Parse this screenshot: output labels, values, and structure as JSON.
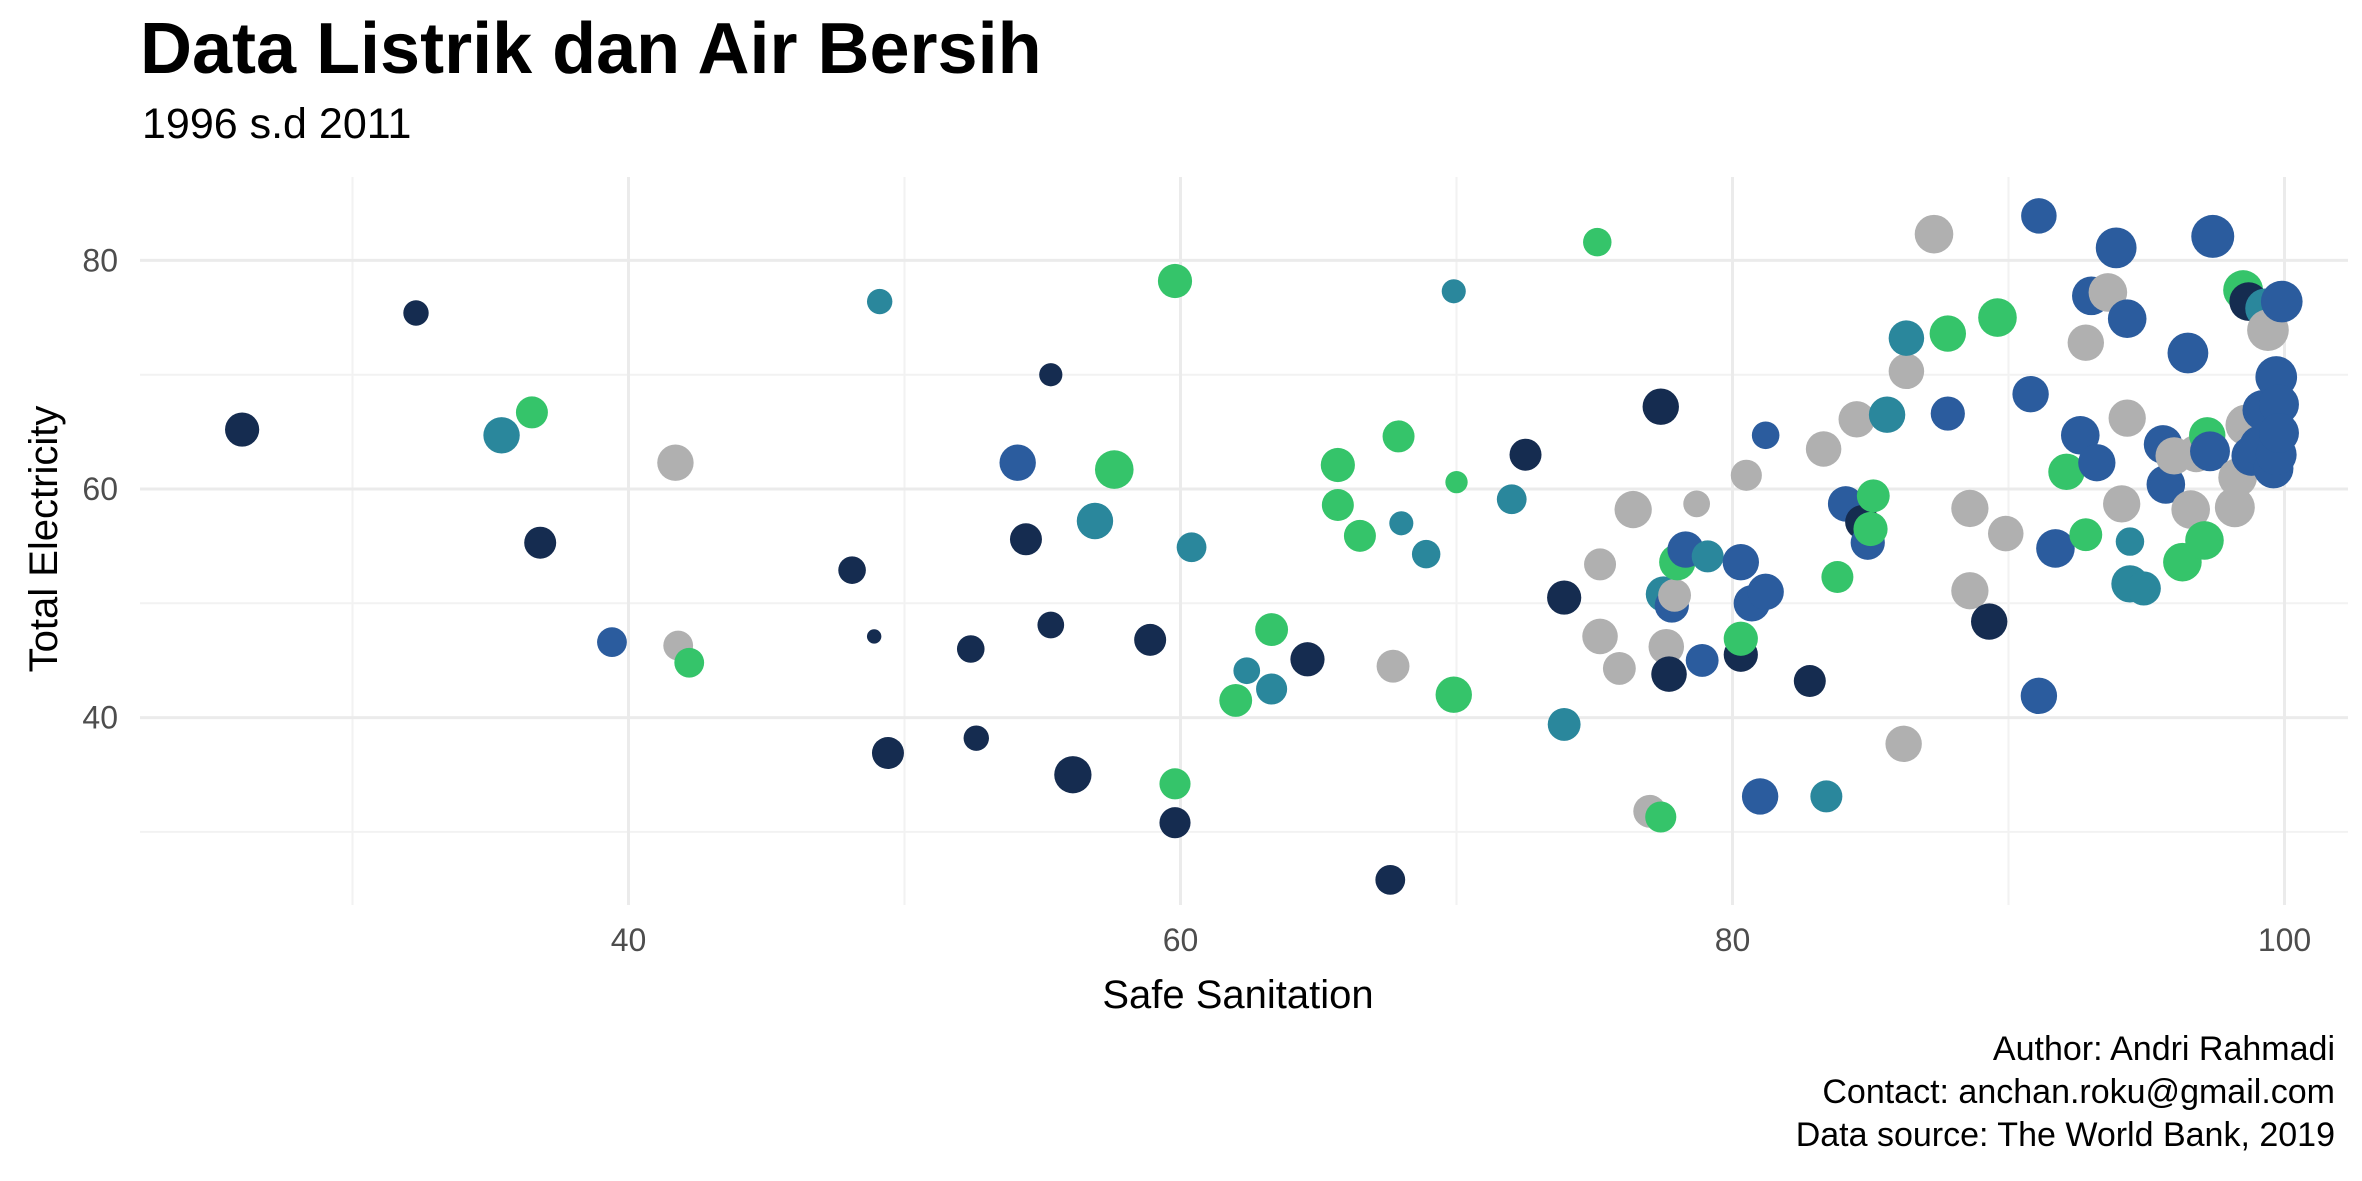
{
  "header": {
    "title": "Data Listrik dan Air Bersih",
    "subtitle": "1996 s.d 2011"
  },
  "caption": {
    "author": "Author: Andri Rahmadi",
    "contact": "Contact: anchan.roku@gmail.com",
    "source": "Data source: The World Bank, 2019"
  },
  "colors": {
    "navy": "#152c50",
    "blue": "#2b5c9e",
    "teal": "#2a879c",
    "green": "#35c46a",
    "gray": "#b0b0b0",
    "grid_major": "#ebebeb",
    "grid_minor": "#f2f2f2"
  },
  "chart_data": {
    "type": "scatter",
    "title": "Data Listrik dan Air Bersih",
    "subtitle": "1996 s.d 2011",
    "xlabel": "Safe Sanitation",
    "ylabel": "Total Electricity",
    "xlim": [
      22.3,
      102.3
    ],
    "ylim": [
      23.6,
      87.3
    ],
    "x_ticks": [
      40,
      60,
      80,
      100
    ],
    "y_ticks": [
      40,
      60,
      80
    ],
    "x_tick_labels": [
      "40",
      "60",
      "80",
      "100"
    ],
    "y_tick_labels": [
      "40",
      "60",
      "80"
    ],
    "grid": true,
    "legend": "none",
    "points": [
      {
        "x": 26.0,
        "y": 65.2,
        "s": 0.55,
        "c": "navy"
      },
      {
        "x": 32.3,
        "y": 75.4,
        "s": 0.35,
        "c": "navy"
      },
      {
        "x": 35.4,
        "y": 64.7,
        "s": 0.6,
        "c": "teal"
      },
      {
        "x": 36.5,
        "y": 66.7,
        "s": 0.5,
        "c": "green"
      },
      {
        "x": 36.8,
        "y": 55.3,
        "s": 0.5,
        "c": "navy"
      },
      {
        "x": 39.4,
        "y": 46.6,
        "s": 0.45,
        "c": "blue"
      },
      {
        "x": 41.7,
        "y": 62.3,
        "s": 0.6,
        "c": "gray"
      },
      {
        "x": 41.8,
        "y": 46.3,
        "s": 0.45,
        "c": "gray"
      },
      {
        "x": 42.2,
        "y": 44.8,
        "s": 0.45,
        "c": "green"
      },
      {
        "x": 48.1,
        "y": 52.9,
        "s": 0.4,
        "c": "navy"
      },
      {
        "x": 48.9,
        "y": 47.1,
        "s": 0.1,
        "c": "navy"
      },
      {
        "x": 49.1,
        "y": 76.4,
        "s": 0.35,
        "c": "teal"
      },
      {
        "x": 49.4,
        "y": 36.9,
        "s": 0.5,
        "c": "navy"
      },
      {
        "x": 52.4,
        "y": 46.0,
        "s": 0.4,
        "c": "navy"
      },
      {
        "x": 52.6,
        "y": 38.2,
        "s": 0.35,
        "c": "navy"
      },
      {
        "x": 54.1,
        "y": 62.3,
        "s": 0.6,
        "c": "blue"
      },
      {
        "x": 54.4,
        "y": 55.6,
        "s": 0.5,
        "c": "navy"
      },
      {
        "x": 55.3,
        "y": 48.1,
        "s": 0.38,
        "c": "navy"
      },
      {
        "x": 55.3,
        "y": 70.0,
        "s": 0.3,
        "c": "navy"
      },
      {
        "x": 56.1,
        "y": 35.0,
        "s": 0.62,
        "c": "navy"
      },
      {
        "x": 56.9,
        "y": 57.2,
        "s": 0.6,
        "c": "teal"
      },
      {
        "x": 57.6,
        "y": 61.7,
        "s": 0.65,
        "c": "green"
      },
      {
        "x": 58.9,
        "y": 46.8,
        "s": 0.5,
        "c": "navy"
      },
      {
        "x": 59.8,
        "y": 78.2,
        "s": 0.55,
        "c": "green"
      },
      {
        "x": 59.8,
        "y": 34.2,
        "s": 0.48,
        "c": "green"
      },
      {
        "x": 59.8,
        "y": 30.8,
        "s": 0.48,
        "c": "navy"
      },
      {
        "x": 60.4,
        "y": 54.9,
        "s": 0.45,
        "c": "teal"
      },
      {
        "x": 62.0,
        "y": 41.5,
        "s": 0.52,
        "c": "green"
      },
      {
        "x": 62.4,
        "y": 44.1,
        "s": 0.38,
        "c": "teal"
      },
      {
        "x": 63.3,
        "y": 42.5,
        "s": 0.48,
        "c": "teal"
      },
      {
        "x": 63.3,
        "y": 47.7,
        "s": 0.52,
        "c": "green"
      },
      {
        "x": 64.6,
        "y": 45.1,
        "s": 0.55,
        "c": "navy"
      },
      {
        "x": 65.7,
        "y": 62.1,
        "s": 0.55,
        "c": "green"
      },
      {
        "x": 65.7,
        "y": 58.6,
        "s": 0.5,
        "c": "green"
      },
      {
        "x": 66.5,
        "y": 55.9,
        "s": 0.5,
        "c": "green"
      },
      {
        "x": 67.6,
        "y": 25.8,
        "s": 0.45,
        "c": "navy"
      },
      {
        "x": 67.7,
        "y": 44.5,
        "s": 0.52,
        "c": "gray"
      },
      {
        "x": 67.9,
        "y": 64.6,
        "s": 0.5,
        "c": "green"
      },
      {
        "x": 68.0,
        "y": 57.0,
        "s": 0.32,
        "c": "teal"
      },
      {
        "x": 68.9,
        "y": 54.3,
        "s": 0.42,
        "c": "teal"
      },
      {
        "x": 69.9,
        "y": 77.3,
        "s": 0.32,
        "c": "teal"
      },
      {
        "x": 69.9,
        "y": 42.0,
        "s": 0.6,
        "c": "green"
      },
      {
        "x": 70.0,
        "y": 60.6,
        "s": 0.28,
        "c": "green"
      },
      {
        "x": 72.0,
        "y": 59.1,
        "s": 0.45,
        "c": "teal"
      },
      {
        "x": 72.5,
        "y": 63.0,
        "s": 0.5,
        "c": "navy"
      },
      {
        "x": 73.9,
        "y": 50.5,
        "s": 0.55,
        "c": "navy"
      },
      {
        "x": 73.9,
        "y": 39.4,
        "s": 0.52,
        "c": "teal"
      },
      {
        "x": 75.1,
        "y": 81.6,
        "s": 0.42,
        "c": "green"
      },
      {
        "x": 75.2,
        "y": 53.4,
        "s": 0.5,
        "c": "gray"
      },
      {
        "x": 75.2,
        "y": 47.1,
        "s": 0.58,
        "c": "gray"
      },
      {
        "x": 75.9,
        "y": 44.3,
        "s": 0.52,
        "c": "gray"
      },
      {
        "x": 76.4,
        "y": 58.2,
        "s": 0.62,
        "c": "gray"
      },
      {
        "x": 77.0,
        "y": 31.8,
        "s": 0.52,
        "c": "gray"
      },
      {
        "x": 77.4,
        "y": 31.3,
        "s": 0.48,
        "c": "green"
      },
      {
        "x": 77.4,
        "y": 67.2,
        "s": 0.6,
        "c": "navy"
      },
      {
        "x": 77.5,
        "y": 50.8,
        "s": 0.58,
        "c": "teal"
      },
      {
        "x": 77.6,
        "y": 46.2,
        "s": 0.58,
        "c": "gray"
      },
      {
        "x": 77.7,
        "y": 43.8,
        "s": 0.58,
        "c": "navy"
      },
      {
        "x": 77.8,
        "y": 49.8,
        "s": 0.55,
        "c": "blue"
      },
      {
        "x": 77.9,
        "y": 50.7,
        "s": 0.52,
        "c": "gray"
      },
      {
        "x": 78.0,
        "y": 53.6,
        "s": 0.6,
        "c": "green"
      },
      {
        "x": 78.3,
        "y": 54.7,
        "s": 0.6,
        "c": "blue"
      },
      {
        "x": 78.7,
        "y": 58.7,
        "s": 0.38,
        "c": "gray"
      },
      {
        "x": 78.9,
        "y": 45.0,
        "s": 0.52,
        "c": "blue"
      },
      {
        "x": 79.1,
        "y": 54.1,
        "s": 0.5,
        "c": "teal"
      },
      {
        "x": 80.3,
        "y": 45.5,
        "s": 0.55,
        "c": "navy"
      },
      {
        "x": 80.3,
        "y": 46.9,
        "s": 0.55,
        "c": "green"
      },
      {
        "x": 80.3,
        "y": 53.6,
        "s": 0.6,
        "c": "blue"
      },
      {
        "x": 80.5,
        "y": 61.2,
        "s": 0.48,
        "c": "gray"
      },
      {
        "x": 80.7,
        "y": 50.0,
        "s": 0.6,
        "c": "blue"
      },
      {
        "x": 81.0,
        "y": 33.1,
        "s": 0.6,
        "c": "blue"
      },
      {
        "x": 81.2,
        "y": 51.0,
        "s": 0.6,
        "c": "blue"
      },
      {
        "x": 81.2,
        "y": 64.7,
        "s": 0.4,
        "c": "blue"
      },
      {
        "x": 82.8,
        "y": 43.2,
        "s": 0.5,
        "c": "navy"
      },
      {
        "x": 83.3,
        "y": 63.5,
        "s": 0.58,
        "c": "gray"
      },
      {
        "x": 83.4,
        "y": 33.1,
        "s": 0.5,
        "c": "teal"
      },
      {
        "x": 83.8,
        "y": 52.3,
        "s": 0.5,
        "c": "green"
      },
      {
        "x": 84.1,
        "y": 58.7,
        "s": 0.58,
        "c": "blue"
      },
      {
        "x": 84.5,
        "y": 66.1,
        "s": 0.6,
        "c": "gray"
      },
      {
        "x": 84.7,
        "y": 57.1,
        "s": 0.55,
        "c": "navy"
      },
      {
        "x": 84.9,
        "y": 55.3,
        "s": 0.55,
        "c": "blue"
      },
      {
        "x": 85.0,
        "y": 56.5,
        "s": 0.55,
        "c": "green"
      },
      {
        "x": 85.1,
        "y": 59.4,
        "s": 0.52,
        "c": "green"
      },
      {
        "x": 85.6,
        "y": 66.5,
        "s": 0.6,
        "c": "teal"
      },
      {
        "x": 86.2,
        "y": 37.7,
        "s": 0.6,
        "c": "gray"
      },
      {
        "x": 86.3,
        "y": 70.3,
        "s": 0.58,
        "c": "gray"
      },
      {
        "x": 86.3,
        "y": 73.2,
        "s": 0.58,
        "c": "teal"
      },
      {
        "x": 87.3,
        "y": 82.3,
        "s": 0.65,
        "c": "gray"
      },
      {
        "x": 87.8,
        "y": 73.6,
        "s": 0.6,
        "c": "green"
      },
      {
        "x": 87.8,
        "y": 66.6,
        "s": 0.55,
        "c": "blue"
      },
      {
        "x": 88.6,
        "y": 58.3,
        "s": 0.62,
        "c": "gray"
      },
      {
        "x": 88.6,
        "y": 51.1,
        "s": 0.62,
        "c": "gray"
      },
      {
        "x": 89.3,
        "y": 48.4,
        "s": 0.6,
        "c": "navy"
      },
      {
        "x": 89.6,
        "y": 75.0,
        "s": 0.65,
        "c": "green"
      },
      {
        "x": 89.9,
        "y": 56.1,
        "s": 0.58,
        "c": "gray"
      },
      {
        "x": 90.8,
        "y": 68.3,
        "s": 0.6,
        "c": "blue"
      },
      {
        "x": 91.1,
        "y": 41.9,
        "s": 0.6,
        "c": "blue"
      },
      {
        "x": 91.1,
        "y": 83.9,
        "s": 0.58,
        "c": "blue"
      },
      {
        "x": 91.7,
        "y": 54.8,
        "s": 0.65,
        "c": "blue"
      },
      {
        "x": 92.1,
        "y": 61.5,
        "s": 0.6,
        "c": "green"
      },
      {
        "x": 92.6,
        "y": 64.7,
        "s": 0.65,
        "c": "blue"
      },
      {
        "x": 92.8,
        "y": 56.0,
        "s": 0.52,
        "c": "green"
      },
      {
        "x": 92.8,
        "y": 72.8,
        "s": 0.6,
        "c": "gray"
      },
      {
        "x": 93.0,
        "y": 76.9,
        "s": 0.65,
        "c": "blue"
      },
      {
        "x": 93.2,
        "y": 62.3,
        "s": 0.62,
        "c": "blue"
      },
      {
        "x": 93.6,
        "y": 77.2,
        "s": 0.65,
        "c": "gray"
      },
      {
        "x": 93.9,
        "y": 81.1,
        "s": 0.7,
        "c": "blue"
      },
      {
        "x": 94.1,
        "y": 58.7,
        "s": 0.62,
        "c": "gray"
      },
      {
        "x": 94.3,
        "y": 66.2,
        "s": 0.62,
        "c": "gray"
      },
      {
        "x": 94.3,
        "y": 74.9,
        "s": 0.65,
        "c": "blue"
      },
      {
        "x": 94.4,
        "y": 55.4,
        "s": 0.42,
        "c": "teal"
      },
      {
        "x": 94.4,
        "y": 51.7,
        "s": 0.62,
        "c": "teal"
      },
      {
        "x": 94.9,
        "y": 51.3,
        "s": 0.55,
        "c": "teal"
      },
      {
        "x": 95.6,
        "y": 63.9,
        "s": 0.65,
        "c": "blue"
      },
      {
        "x": 95.7,
        "y": 60.4,
        "s": 0.65,
        "c": "blue"
      },
      {
        "x": 96.0,
        "y": 62.9,
        "s": 0.62,
        "c": "gray"
      },
      {
        "x": 96.3,
        "y": 53.6,
        "s": 0.65,
        "c": "green"
      },
      {
        "x": 96.5,
        "y": 71.9,
        "s": 0.7,
        "c": "blue"
      },
      {
        "x": 96.6,
        "y": 58.2,
        "s": 0.65,
        "c": "gray"
      },
      {
        "x": 96.8,
        "y": 63.1,
        "s": 0.62,
        "c": "gray"
      },
      {
        "x": 97.1,
        "y": 55.5,
        "s": 0.65,
        "c": "green"
      },
      {
        "x": 97.2,
        "y": 64.7,
        "s": 0.6,
        "c": "green"
      },
      {
        "x": 97.3,
        "y": 63.3,
        "s": 0.68,
        "c": "blue"
      },
      {
        "x": 97.4,
        "y": 82.1,
        "s": 0.75,
        "c": "blue"
      },
      {
        "x": 98.2,
        "y": 58.4,
        "s": 0.68,
        "c": "gray"
      },
      {
        "x": 98.3,
        "y": 61.0,
        "s": 0.65,
        "c": "gray"
      },
      {
        "x": 98.5,
        "y": 77.4,
        "s": 0.68,
        "c": "green"
      },
      {
        "x": 98.6,
        "y": 65.6,
        "s": 0.7,
        "c": "gray"
      },
      {
        "x": 98.7,
        "y": 76.4,
        "s": 0.65,
        "c": "navy"
      },
      {
        "x": 98.8,
        "y": 62.9,
        "s": 0.68,
        "c": "blue"
      },
      {
        "x": 99.1,
        "y": 63.8,
        "s": 0.68,
        "c": "blue"
      },
      {
        "x": 99.2,
        "y": 66.9,
        "s": 0.68,
        "c": "blue"
      },
      {
        "x": 99.3,
        "y": 75.8,
        "s": 0.68,
        "c": "teal"
      },
      {
        "x": 99.4,
        "y": 73.9,
        "s": 0.72,
        "c": "gray"
      },
      {
        "x": 99.6,
        "y": 61.8,
        "s": 0.68,
        "c": "blue"
      },
      {
        "x": 99.7,
        "y": 69.8,
        "s": 0.72,
        "c": "blue"
      },
      {
        "x": 99.7,
        "y": 63.0,
        "s": 0.7,
        "c": "blue"
      },
      {
        "x": 99.8,
        "y": 67.4,
        "s": 0.68,
        "c": "blue"
      },
      {
        "x": 99.8,
        "y": 64.9,
        "s": 0.68,
        "c": "blue"
      },
      {
        "x": 99.9,
        "y": 76.4,
        "s": 0.72,
        "c": "blue"
      }
    ]
  }
}
